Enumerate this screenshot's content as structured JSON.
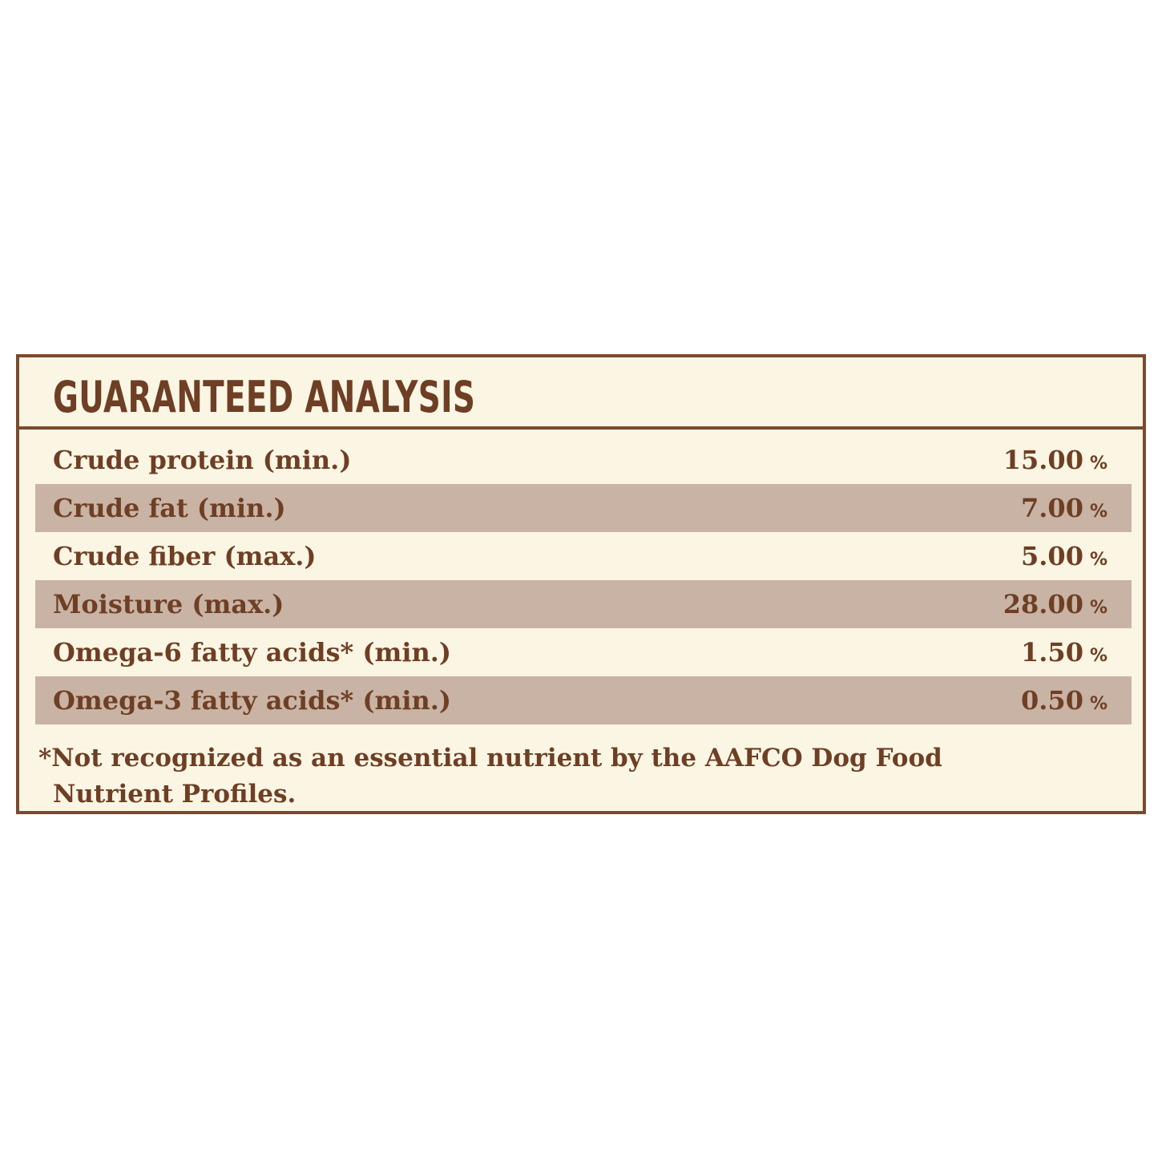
{
  "panel": {
    "title": "GUARANTEED ANALYSIS",
    "colors": {
      "border": "#7b4a2d",
      "text": "#6e3f24",
      "background": "#fbf5e4",
      "row_shade": "#c9b3a5"
    },
    "rows": [
      {
        "label": "Crude protein (min.)",
        "value": "15.00",
        "unit": "%"
      },
      {
        "label": "Crude fat (min.)",
        "value": "7.00",
        "unit": "%"
      },
      {
        "label": "Crude fiber (max.)",
        "value": "5.00",
        "unit": "%"
      },
      {
        "label": "Moisture (max.)",
        "value": "28.00",
        "unit": "%"
      },
      {
        "label": "Omega-6 fatty acids* (min.)",
        "value": "1.50",
        "unit": "%"
      },
      {
        "label": "Omega-3 fatty acids* (min.)",
        "value": "0.50",
        "unit": "%"
      }
    ],
    "footnote": "*Not recognized as an essential nutrient by the AAFCO Dog Food Nutrient Profiles."
  }
}
